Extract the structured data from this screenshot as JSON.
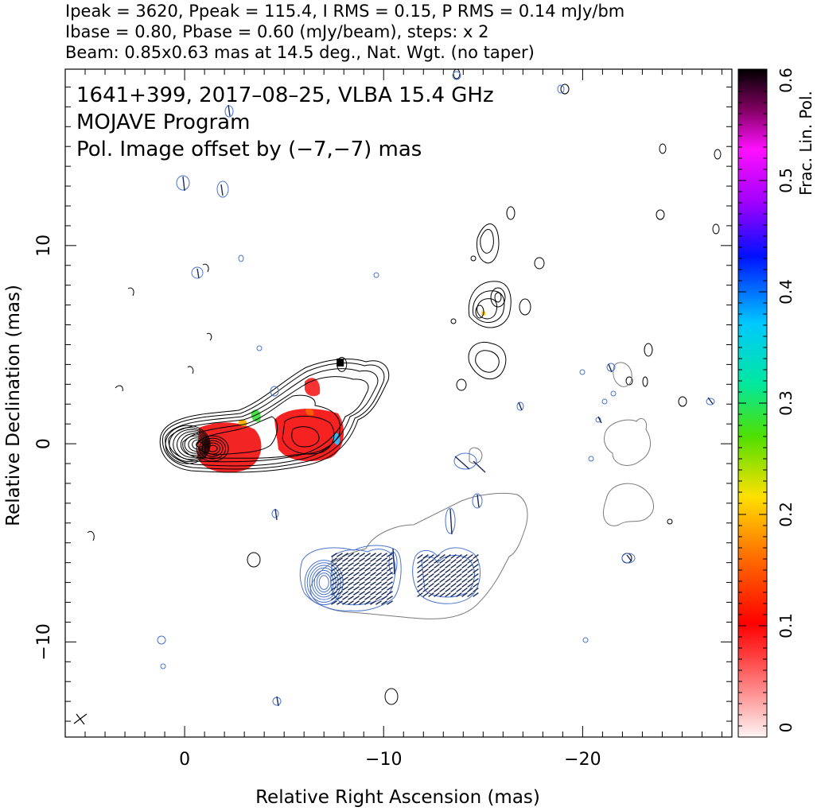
{
  "header": {
    "line1": "Ipeak = 3620, Ppeak = 115.4, I RMS = 0.15, P RMS = 0.14 mJy/bm",
    "line2": "Ibase = 0.80, Pbase = 0.60 (mJy/beam), steps: x 2",
    "line3": "Beam: 0.85x0.63 mas at 14.5 deg., Nat. Wgt. (no taper)"
  },
  "plot": {
    "source_line": "1641+399, 2017–08–25, VLBA 15.4 GHz",
    "program_line": "MOJAVE Program",
    "pol_offset_line": "Pol. Image offset by (−7,−7) mas",
    "pol_offset_color": "#4a74d0"
  },
  "chart_data": {
    "type": "contour map",
    "xlabel": "Relative Right Ascension (mas)",
    "ylabel": "Relative Declination (mas)",
    "xlim": [
      6,
      -27.5
    ],
    "ylim": [
      -14.8,
      18.9
    ],
    "x_ticks": [
      0,
      -10,
      -20
    ],
    "x_tick_labels": [
      "0",
      "−10",
      "−20"
    ],
    "y_ticks": [
      10,
      0,
      -10
    ],
    "y_tick_labels": [
      "10",
      "0",
      "−10"
    ],
    "colorbar": {
      "label": "Frac. Lin. Pol.",
      "range": [
        0,
        0.6
      ],
      "ticks": [
        0,
        0.1,
        0.2,
        0.3,
        0.4,
        0.5,
        0.6
      ],
      "tick_labels": [
        "0",
        "0.1",
        "0.2",
        "0.3",
        "0.4",
        "0.5",
        "0.6"
      ]
    },
    "stokes_I_core": {
      "x": 0,
      "y": 0
    },
    "polarization_image_core": {
      "x": -7,
      "y": -7
    },
    "contour_color_total": "#000000",
    "contour_color_pol": "#4a74d0",
    "contour_color_outer": "#7a7a7a"
  }
}
